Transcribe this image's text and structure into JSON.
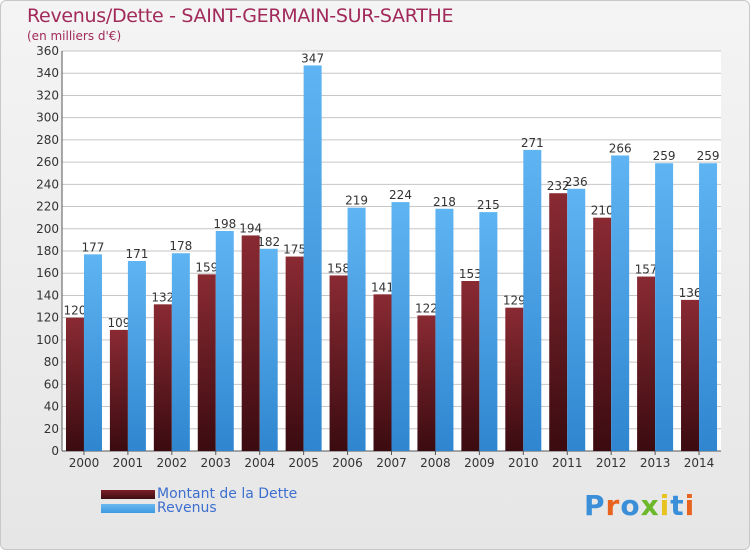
{
  "header": {
    "title": "Revenus/Dette - SAINT-GERMAIN-SUR-SARTHE",
    "subtitle": "(en milliers d'€)"
  },
  "colors": {
    "title": "#a12a5a",
    "dette": "#7b1f28",
    "revenus": "#3c9ae0",
    "legend_text": "#3c6fcf",
    "grid": "#c6c6c6"
  },
  "legend": {
    "items": [
      {
        "label": "Montant de la Dette",
        "color_key": "dette"
      },
      {
        "label": "Revenus",
        "color_key": "revenus"
      }
    ]
  },
  "logo": {
    "text": "Proxiti",
    "letter_colors": [
      "#3a8fd8",
      "#e8631e",
      "#3a8fd8",
      "#6bb82a",
      "#e8c21e",
      "#3a8fd8",
      "#e8631e"
    ]
  },
  "chart_data": {
    "type": "bar",
    "categories": [
      "2000",
      "2001",
      "2002",
      "2003",
      "2004",
      "2005",
      "2006",
      "2007",
      "2008",
      "2009",
      "2010",
      "2011",
      "2012",
      "2013",
      "2014"
    ],
    "series": [
      {
        "name": "Montant de la Dette",
        "values": [
          120,
          109,
          132,
          159,
          194,
          175,
          158,
          141,
          122,
          153,
          129,
          232,
          210,
          157,
          136
        ]
      },
      {
        "name": "Revenus",
        "values": [
          177,
          171,
          178,
          198,
          182,
          347,
          219,
          224,
          218,
          215,
          271,
          236,
          266,
          259,
          259
        ]
      }
    ],
    "ylim": [
      0,
      360
    ],
    "yticks": [
      0,
      20,
      40,
      60,
      80,
      100,
      120,
      140,
      160,
      180,
      200,
      220,
      240,
      260,
      280,
      300,
      320,
      340,
      360
    ],
    "grid": true,
    "legend_position": "bottom-left"
  }
}
